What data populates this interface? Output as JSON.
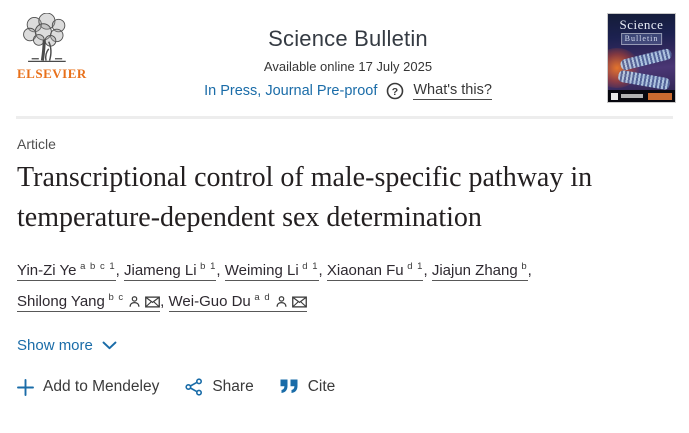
{
  "header": {
    "publisher_name": "ELSEVIER",
    "journal_name": "Science Bulletin",
    "available_online": "Available online 17 July 2025",
    "in_press_label": "In Press, Journal Pre-proof",
    "whats_this_label": "What's this?",
    "cover_title_word1": "Science",
    "cover_title_word2": "Bulletin"
  },
  "article": {
    "type_label": "Article",
    "title": "Transcriptional control of male-specific pathway in temperature-dependent sex determination",
    "authors": [
      {
        "name": "Yin-Zi Ye",
        "affiliations": "a b c 1",
        "has_profile_icon": false,
        "has_email_icon": false
      },
      {
        "name": "Jiameng Li",
        "affiliations": "b 1",
        "has_profile_icon": false,
        "has_email_icon": false
      },
      {
        "name": "Weiming Li",
        "affiliations": "d 1",
        "has_profile_icon": false,
        "has_email_icon": false
      },
      {
        "name": "Xiaonan Fu",
        "affiliations": "d 1",
        "has_profile_icon": false,
        "has_email_icon": false
      },
      {
        "name": "Jiajun Zhang",
        "affiliations": "b",
        "has_profile_icon": false,
        "has_email_icon": false
      },
      {
        "name": "Shilong Yang",
        "affiliations": "b c",
        "has_profile_icon": true,
        "has_email_icon": true
      },
      {
        "name": "Wei-Guo Du",
        "affiliations": "a d",
        "has_profile_icon": true,
        "has_email_icon": true
      }
    ],
    "show_more_label": "Show more"
  },
  "actions": {
    "add_to_mendeley_label": "Add to Mendeley",
    "share_label": "Share",
    "cite_label": "Cite"
  },
  "colors": {
    "link_blue": "#1a6ca8",
    "elsevier_orange": "#e8701a",
    "divider_gray": "#ededed"
  }
}
